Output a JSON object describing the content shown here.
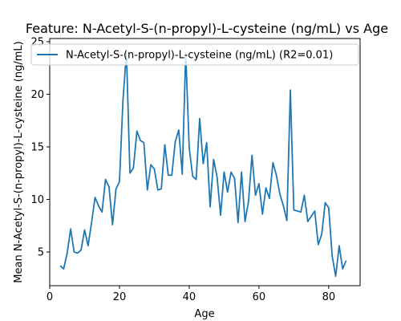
{
  "chart_data": {
    "type": "line",
    "title": "Feature: N-Acetyl-S-(n-propyl)-L-cysteine (ng/mL) vs Age",
    "xlabel": "Age",
    "ylabel": "Mean N-Acetyl-S-(n-propyl)-L-cysteine (ng/mL)",
    "xlim": [
      0,
      89
    ],
    "ylim": [
      1.8,
      25.3
    ],
    "xticks": [
      0,
      20,
      40,
      60,
      80
    ],
    "yticks": [
      5,
      10,
      15,
      20,
      25
    ],
    "grid": false,
    "legend": "top",
    "series": [
      {
        "name": "N-Acetyl-S-(n-propyl)-L-cysteine (ng/mL) (R2=0.01)",
        "color": "#1f77b4",
        "x": [
          3,
          4,
          5,
          6,
          7,
          8,
          9,
          10,
          11,
          12,
          13,
          14,
          15,
          16,
          17,
          18,
          19,
          20,
          21,
          22,
          23,
          24,
          25,
          26,
          27,
          28,
          29,
          30,
          31,
          32,
          33,
          34,
          35,
          36,
          37,
          38,
          39,
          40,
          41,
          42,
          43,
          44,
          45,
          46,
          47,
          48,
          49,
          50,
          51,
          52,
          53,
          54,
          55,
          56,
          57,
          58,
          59,
          60,
          61,
          62,
          63,
          64,
          65,
          66,
          67,
          68,
          69,
          70,
          71,
          72,
          73,
          74,
          75,
          76,
          77,
          78,
          79,
          80,
          81,
          82,
          83,
          84,
          85
        ],
        "y": [
          3.7,
          3.4,
          4.9,
          7.2,
          5.0,
          4.9,
          5.2,
          7.1,
          5.6,
          7.8,
          10.2,
          9.4,
          8.8,
          11.9,
          11.2,
          7.6,
          11.0,
          11.7,
          19.4,
          24.0,
          12.5,
          13.0,
          16.5,
          15.6,
          15.4,
          10.9,
          13.3,
          12.9,
          10.9,
          11.0,
          15.2,
          12.3,
          12.3,
          15.5,
          16.6,
          12.4,
          23.9,
          14.9,
          12.2,
          11.9,
          17.7,
          13.4,
          15.4,
          9.3,
          13.8,
          12.1,
          8.5,
          12.6,
          10.7,
          12.6,
          12.0,
          7.8,
          12.6,
          7.9,
          9.8,
          14.2,
          10.4,
          11.5,
          8.6,
          11.1,
          10.1,
          13.5,
          12.3,
          10.5,
          9.4,
          8.0,
          20.4,
          9.0,
          8.9,
          8.8,
          10.4,
          7.9,
          8.4,
          8.9,
          5.7,
          6.7,
          9.7,
          9.2,
          4.6,
          2.7,
          5.6,
          3.4,
          4.2
        ]
      }
    ]
  }
}
